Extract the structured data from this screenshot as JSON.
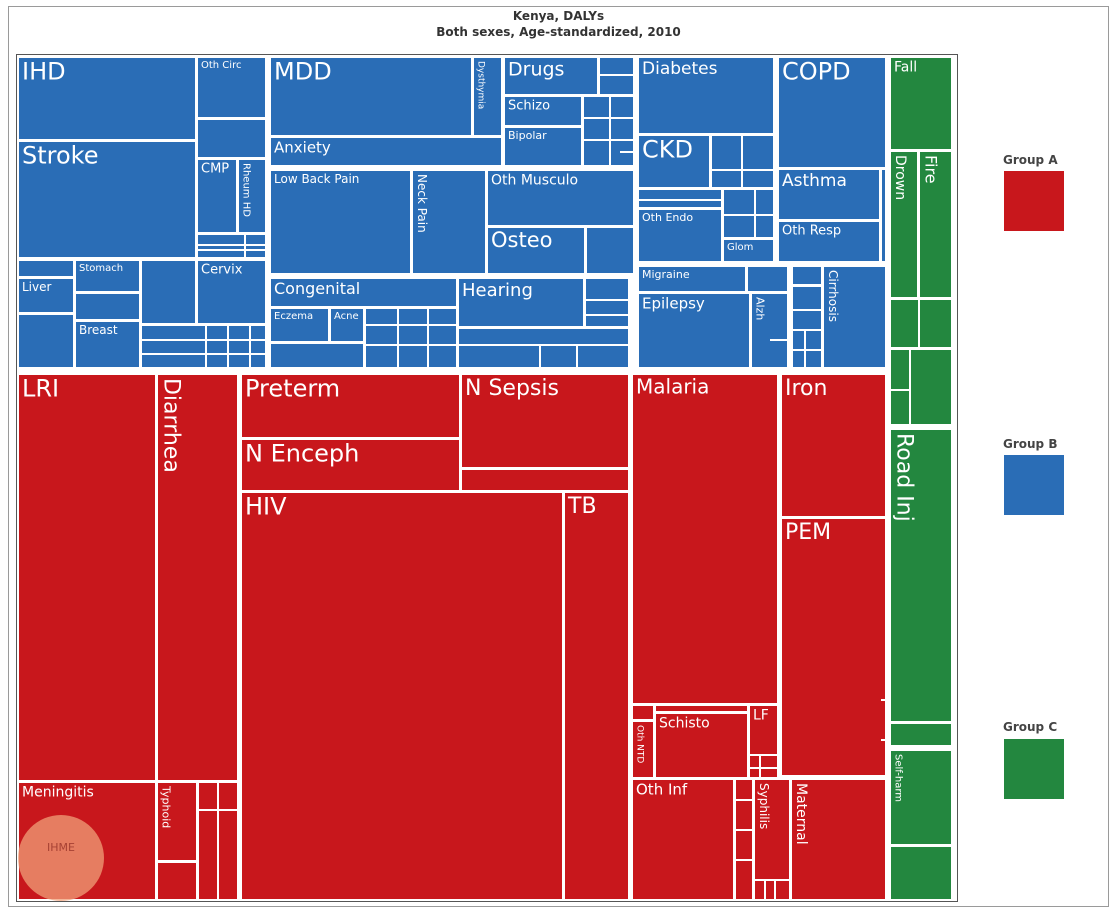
{
  "chart_data": {
    "type": "treemap",
    "title": "Kenya, DALYs",
    "subtitle": "Both sexes, Age-standardized, 2010",
    "groups": [
      {
        "name": "Group A",
        "color": "#c8171c"
      },
      {
        "name": "Group B",
        "color": "#2a6db6"
      },
      {
        "name": "Group C",
        "color": "#23873f"
      }
    ],
    "labels": {
      "IHD": "IHD",
      "OthCirc": "Oth Circ",
      "Stroke": "Stroke",
      "CMP": "CMP",
      "RheumHD": "Rheum HD",
      "Stomach": "Stomach",
      "Liver": "Liver",
      "Breast": "Breast",
      "Cervix": "Cervix",
      "MDD": "MDD",
      "Dysthymia": "Dysthymia",
      "Anxiety": "Anxiety",
      "Drugs": "Drugs",
      "Schizo": "Schizo",
      "Bipolar": "Bipolar",
      "LowBackPain": "Low Back Pain",
      "NeckPain": "Neck Pain",
      "OthMusculo": "Oth Musculo",
      "Osteo": "Osteo",
      "Congenital": "Congenital",
      "Eczema": "Eczema",
      "Acne": "Acne",
      "Hearing": "Hearing",
      "Diabetes": "Diabetes",
      "CKD": "CKD",
      "OthEndo": "Oth Endo",
      "Glom": "Glom",
      "COPD": "COPD",
      "Asthma": "Asthma",
      "OthResp": "Oth Resp",
      "Migraine": "Migraine",
      "Epilepsy": "Epilepsy",
      "Alzh": "Alzh",
      "Cirrhosis": "Cirrhosis",
      "Fall": "Fall",
      "Drown": "Drown",
      "Fire": "Fire",
      "RoadInj": "Road Inj",
      "SelfHarm": "Self-harm",
      "LRI": "LRI",
      "Diarrhea": "Diarrhea",
      "Meningitis": "Meningitis",
      "Typhoid": "Typhoid",
      "Preterm": "Preterm",
      "NEnceph": "N Enceph",
      "NSepsis": "N Sepsis",
      "HIV": "HIV",
      "TB": "TB",
      "Malaria": "Malaria",
      "Iron": "Iron",
      "PEM": "PEM",
      "Schisto": "Schisto",
      "LF": "LF",
      "OthNTD": "Oth NTD",
      "OthInf": "Oth Inf",
      "Syphilis": "Syphilis",
      "Maternal": "Maternal"
    },
    "logo_text": "IHME"
  }
}
